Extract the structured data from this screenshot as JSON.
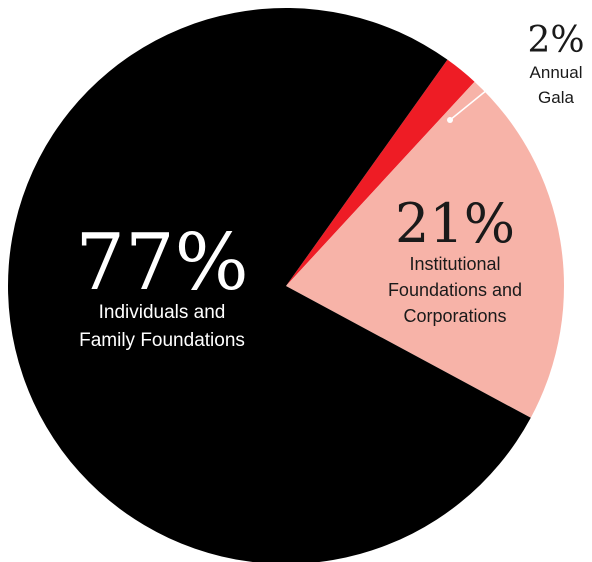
{
  "chart_data": {
    "type": "pie",
    "categories": [
      "Individuals and Family Foundations",
      "Institutional Foundations and Corporations",
      "Annual Gala"
    ],
    "values": [
      77,
      21,
      2
    ],
    "value_labels": [
      "77%",
      "21%",
      "2%"
    ],
    "label_lines": [
      [
        "Individuals and",
        "Family Foundations"
      ],
      [
        "Institutional",
        "Foundations and",
        "Corporations"
      ],
      [
        "Annual",
        "Gala"
      ]
    ],
    "colors": [
      "#000000",
      "#f7b3a8",
      "#ee1c25"
    ]
  }
}
